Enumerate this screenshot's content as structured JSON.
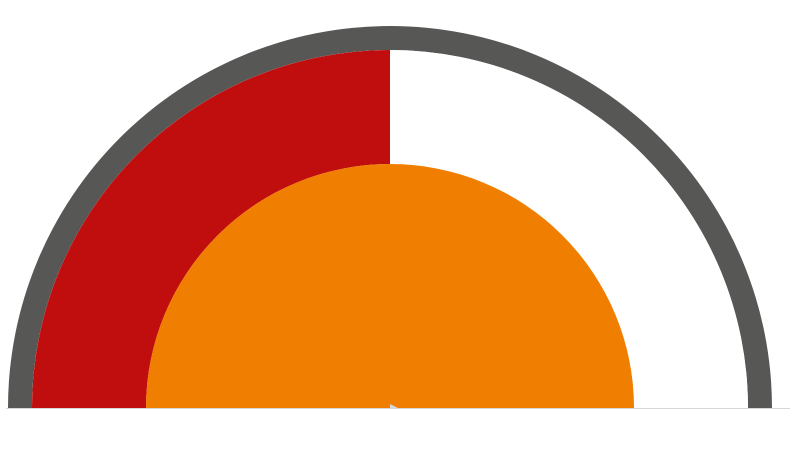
{
  "chart_data": {
    "type": "gauge",
    "value": 50,
    "range": [
      0,
      100
    ],
    "title": "",
    "colors": {
      "ring": "#575755",
      "fill": "#c00d0d",
      "center": "#f07e00",
      "background": "#ffffff",
      "baseline": "#d8d8d8"
    }
  }
}
